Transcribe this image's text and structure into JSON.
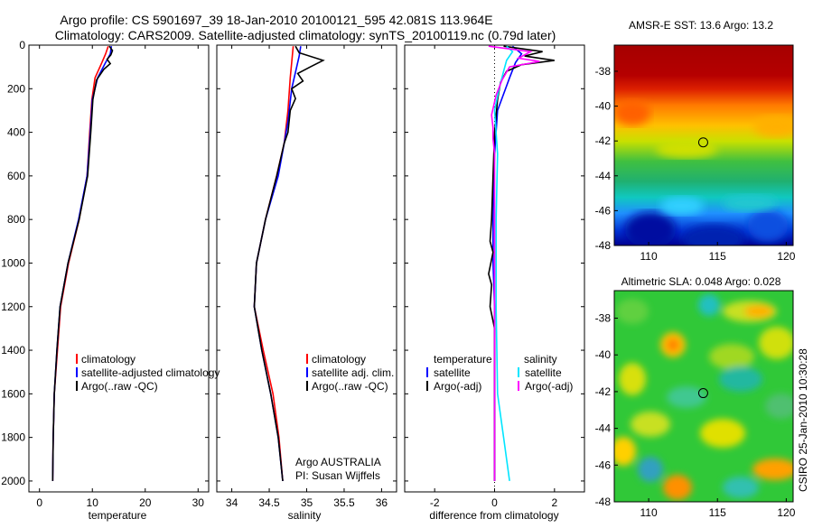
{
  "header": {
    "line1": "Argo profile: CS 5901697_39 18-Jan-2010 20100121_595 42.081S 113.964E",
    "line2": "Climatology: CARS2009. Satellite-adjusted climatology: synTS_20100119.nc (0.79d later)"
  },
  "side_label": "CSIRO 25-Jan-2010 10:30:28",
  "colors": {
    "climatology": "#ff0000",
    "satellite": "#0000ff",
    "argo": "#000000",
    "sal_satellite": "#00e5ff",
    "sal_argo": "#ff00ff"
  },
  "chart_data": [
    {
      "type": "line",
      "name": "temperature-profile",
      "xlabel": "temperature",
      "ylabel": "",
      "xlim": [
        -2,
        32
      ],
      "ylim": [
        0,
        2050
      ],
      "y_inverted": true,
      "xticks": [
        0,
        10,
        20,
        30
      ],
      "yticks": [
        0,
        200,
        400,
        600,
        800,
        1000,
        1200,
        1400,
        1600,
        1800,
        2000
      ],
      "legend": {
        "placement": "lower-right",
        "entries": [
          "climatology",
          "satellite-adjusted climatology",
          "Argo(..raw -QC)"
        ]
      },
      "series": [
        {
          "name": "climatology",
          "color": "#ff0000",
          "points": [
            [
              13.0,
              5
            ],
            [
              12.5,
              40
            ],
            [
              11.8,
              80
            ],
            [
              10.5,
              150
            ],
            [
              9.9,
              250
            ],
            [
              9.5,
              400
            ],
            [
              9.0,
              600
            ],
            [
              7.5,
              800
            ],
            [
              5.5,
              1000
            ],
            [
              4.0,
              1200
            ],
            [
              3.4,
              1400
            ],
            [
              2.8,
              1600
            ],
            [
              2.6,
              1800
            ],
            [
              2.5,
              2000
            ]
          ]
        },
        {
          "name": "satellite-adjusted climatology",
          "color": "#0000ff",
          "points": [
            [
              13.6,
              5
            ],
            [
              13.4,
              40
            ],
            [
              12.5,
              80
            ],
            [
              11.0,
              150
            ],
            [
              10.0,
              250
            ],
            [
              9.6,
              400
            ],
            [
              9.0,
              600
            ],
            [
              7.4,
              800
            ],
            [
              5.4,
              1000
            ],
            [
              3.9,
              1200
            ],
            [
              3.3,
              1400
            ],
            [
              2.8,
              1600
            ],
            [
              2.6,
              1800
            ],
            [
              2.5,
              2000
            ]
          ]
        },
        {
          "name": "Argo(..raw -QC)",
          "color": "#000000",
          "points": [
            [
              13.2,
              5
            ],
            [
              13.8,
              25
            ],
            [
              13.5,
              45
            ],
            [
              12.8,
              65
            ],
            [
              13.4,
              85
            ],
            [
              12.2,
              110
            ],
            [
              10.8,
              160
            ],
            [
              10.1,
              250
            ],
            [
              9.7,
              400
            ],
            [
              9.1,
              600
            ],
            [
              7.5,
              800
            ],
            [
              5.4,
              1000
            ],
            [
              3.9,
              1200
            ],
            [
              3.3,
              1400
            ],
            [
              2.8,
              1600
            ],
            [
              2.6,
              1800
            ],
            [
              2.5,
              2000
            ]
          ]
        }
      ]
    },
    {
      "type": "line",
      "name": "salinity-profile",
      "xlabel": "salinity",
      "ylabel": "",
      "xlim": [
        33.8,
        36.2
      ],
      "ylim": [
        0,
        2050
      ],
      "y_inverted": true,
      "xticks": [
        34,
        34.5,
        35,
        35.5,
        36
      ],
      "legend": {
        "placement": "lower-right",
        "entries": [
          "climatology",
          "satellite adj. clim.",
          "Argo(..raw -QC)"
        ]
      },
      "annotation": [
        "Argo AUSTRALIA",
        "PI: Susan Wijffels"
      ],
      "series": [
        {
          "name": "climatology",
          "color": "#ff0000",
          "points": [
            [
              34.82,
              5
            ],
            [
              34.8,
              80
            ],
            [
              34.78,
              150
            ],
            [
              34.75,
              300
            ],
            [
              34.7,
              450
            ],
            [
              34.6,
              600
            ],
            [
              34.45,
              800
            ],
            [
              34.33,
              1000
            ],
            [
              34.3,
              1200
            ],
            [
              34.42,
              1400
            ],
            [
              34.55,
              1600
            ],
            [
              34.63,
              1800
            ],
            [
              34.68,
              2000
            ]
          ]
        },
        {
          "name": "satellite adj. clim.",
          "color": "#0000ff",
          "points": [
            [
              34.92,
              5
            ],
            [
              34.9,
              50
            ],
            [
              34.86,
              110
            ],
            [
              34.8,
              200
            ],
            [
              34.75,
              350
            ],
            [
              34.7,
              450
            ],
            [
              34.62,
              600
            ],
            [
              34.45,
              800
            ],
            [
              34.33,
              1000
            ],
            [
              34.3,
              1200
            ],
            [
              34.4,
              1400
            ],
            [
              34.52,
              1600
            ],
            [
              34.62,
              1800
            ],
            [
              34.68,
              2000
            ]
          ]
        },
        {
          "name": "Argo(..raw -QC)",
          "color": "#000000",
          "points": [
            [
              34.85,
              5
            ],
            [
              34.9,
              35
            ],
            [
              35.22,
              70
            ],
            [
              35.05,
              100
            ],
            [
              34.88,
              130
            ],
            [
              34.95,
              165
            ],
            [
              34.8,
              200
            ],
            [
              34.85,
              245
            ],
            [
              34.78,
              300
            ],
            [
              34.75,
              400
            ],
            [
              34.7,
              450
            ],
            [
              34.6,
              600
            ],
            [
              34.45,
              800
            ],
            [
              34.33,
              1000
            ],
            [
              34.3,
              1200
            ],
            [
              34.4,
              1400
            ],
            [
              34.52,
              1600
            ],
            [
              34.62,
              1800
            ],
            [
              34.68,
              2000
            ]
          ]
        }
      ]
    },
    {
      "type": "line",
      "name": "difference-profile",
      "xlabel": "difference from climatology",
      "ylabel": "",
      "xlim": [
        -3,
        3
      ],
      "ylim": [
        0,
        2050
      ],
      "y_inverted": true,
      "xticks": [
        -2,
        0,
        2
      ],
      "legend": {
        "placement": "lower-right",
        "headers": [
          "temperature",
          "salinity"
        ],
        "entries": [
          "satellite",
          "Argo(-adj)",
          "satellite",
          "Argo(-adj)"
        ]
      },
      "series": [
        {
          "name": "temperature satellite",
          "color": "#0000ff",
          "points": [
            [
              0.6,
              5
            ],
            [
              0.9,
              40
            ],
            [
              0.7,
              80
            ],
            [
              0.5,
              150
            ],
            [
              0.1,
              300
            ],
            [
              0.0,
              500
            ],
            [
              -0.05,
              800
            ],
            [
              -0.05,
              1000
            ],
            [
              0.0,
              1200
            ],
            [
              0.0,
              1600
            ],
            [
              0.0,
              2000
            ]
          ]
        },
        {
          "name": "temperature Argo(-adj)",
          "color": "#000000",
          "points": [
            [
              0.3,
              5
            ],
            [
              1.6,
              30
            ],
            [
              1.0,
              50
            ],
            [
              2.0,
              70
            ],
            [
              0.9,
              90
            ],
            [
              0.4,
              120
            ],
            [
              0.2,
              170
            ],
            [
              0.1,
              250
            ],
            [
              0.0,
              400
            ],
            [
              -0.05,
              600
            ],
            [
              -0.1,
              800
            ],
            [
              -0.15,
              900
            ],
            [
              -0.05,
              950
            ],
            [
              -0.2,
              1050
            ],
            [
              -0.1,
              1100
            ],
            [
              -0.15,
              1200
            ],
            [
              0.0,
              1300
            ],
            [
              0.0,
              1600
            ],
            [
              0.0,
              2000
            ]
          ]
        },
        {
          "name": "salinity satellite",
          "color": "#00e5ff",
          "points": [
            [
              0.4,
              5
            ],
            [
              0.6,
              30
            ],
            [
              0.4,
              70
            ],
            [
              0.3,
              120
            ],
            [
              0.15,
              200
            ],
            [
              0.0,
              300
            ],
            [
              0.1,
              500
            ],
            [
              0.05,
              800
            ],
            [
              0.05,
              1200
            ],
            [
              0.1,
              1600
            ],
            [
              0.3,
              1800
            ],
            [
              0.4,
              1900
            ],
            [
              0.5,
              2000
            ]
          ]
        },
        {
          "name": "salinity Argo(-adj)",
          "color": "#ff00ff",
          "points": [
            [
              -0.2,
              5
            ],
            [
              1.2,
              30
            ],
            [
              0.8,
              60
            ],
            [
              1.5,
              75
            ],
            [
              0.5,
              100
            ],
            [
              0.25,
              160
            ],
            [
              0.05,
              230
            ],
            [
              -0.1,
              320
            ],
            [
              -0.05,
              380
            ],
            [
              -0.05,
              430
            ],
            [
              0.0,
              500
            ],
            [
              0.0,
              800
            ],
            [
              0.0,
              1200
            ],
            [
              0.0,
              1600
            ],
            [
              0.0,
              2000
            ]
          ]
        }
      ]
    },
    {
      "type": "heatmap",
      "name": "sst-map",
      "title": "AMSR-E SST: 13.6 Argo: 13.2",
      "xlim": [
        107.5,
        120.5
      ],
      "ylim": [
        -48,
        -36.5
      ],
      "xticks": [
        110,
        115,
        120
      ],
      "yticks": [
        -38,
        -40,
        -42,
        -44,
        -46,
        -48
      ],
      "marker": [
        113.964,
        -42.081
      ]
    },
    {
      "type": "heatmap",
      "name": "sla-map",
      "title": "Altimetric SLA: 0.048 Argo: 0.028",
      "xlim": [
        107.5,
        120.5
      ],
      "ylim": [
        -48,
        -36.5
      ],
      "xticks": [
        110,
        115,
        120
      ],
      "yticks": [
        -38,
        -40,
        -42,
        -44,
        -46,
        -48
      ],
      "marker": [
        113.964,
        -42.081
      ]
    }
  ]
}
